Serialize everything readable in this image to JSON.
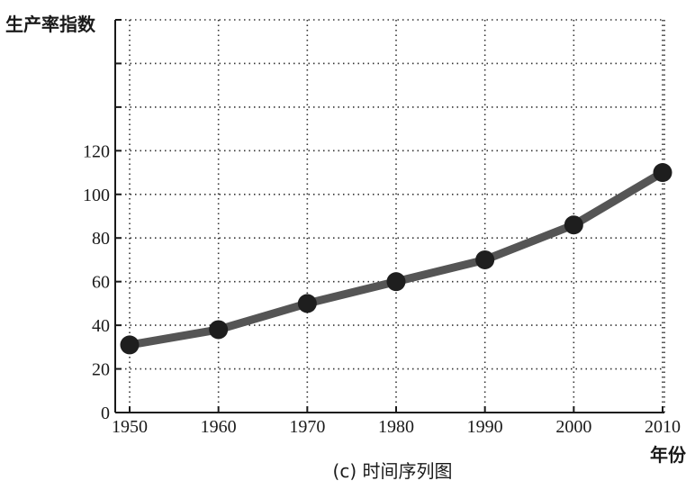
{
  "chart_data": {
    "type": "line",
    "ylabel": "生产率指数",
    "xlabel": "年份",
    "caption": "(c) 时间序列图",
    "x": [
      1950,
      1960,
      1970,
      1980,
      1990,
      2000,
      2010
    ],
    "series": [
      {
        "values": [
          31,
          38,
          50,
          60,
          70,
          86,
          110
        ]
      }
    ],
    "xlim": [
      1950,
      2010
    ],
    "ylim": [
      0,
      180
    ],
    "yticks": [
      0,
      20,
      40,
      60,
      80,
      100,
      120
    ],
    "ygrid_extra": [
      140,
      160,
      180
    ],
    "grid": true,
    "colors": {
      "line": "#555555",
      "marker": "#1e1e1e",
      "axis": "#1a1a1a"
    }
  }
}
